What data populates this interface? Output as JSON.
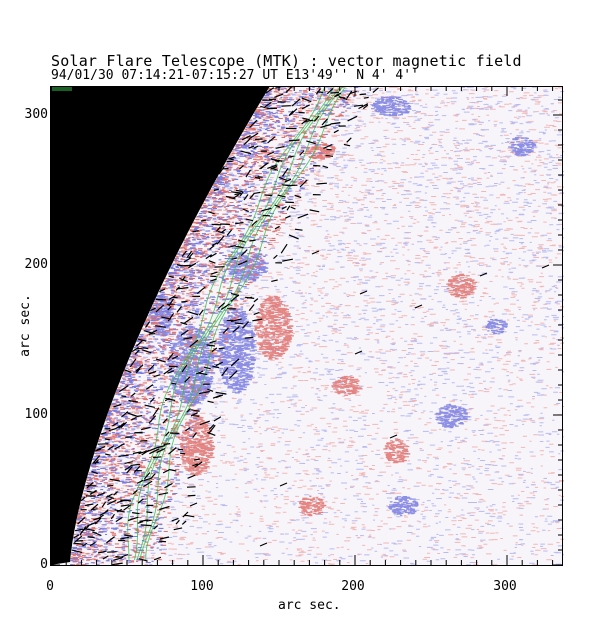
{
  "title": "Solar Flare Telescope (MTK) : vector magnetic field",
  "subtitle": "94/01/30  07:14:21-07:15:27 UT    E13'49''  N 4' 4''",
  "xlabel": "arc sec.",
  "ylabel": "arc sec.",
  "x_ticks": [
    "0",
    "100",
    "200",
    "300"
  ],
  "y_ticks": [
    "0",
    "100",
    "200",
    "300"
  ],
  "colors": {
    "limb": "#000000",
    "positive_polarity": "#e0736f",
    "negative_polarity": "#7a7de0",
    "contour": "#2fbf46",
    "vectors": "#000000",
    "background_noise_pos": "#f0b8b8",
    "background_noise_neg": "#b8bbf0"
  },
  "chart_data": {
    "type": "heatmap",
    "title": "Solar Flare Telescope (MTK) : vector magnetic field",
    "subtitle": "94/01/30  07:14:21-07:15:27 UT    E13'49''  N 4' 4''",
    "xlabel": "arc sec.",
    "ylabel": "arc sec.",
    "xlim": [
      0,
      340
    ],
    "ylim": [
      0,
      315
    ],
    "x_ticks": [
      0,
      100,
      200,
      300
    ],
    "y_ticks": [
      0,
      100,
      200,
      300
    ],
    "grid": false
  }
}
